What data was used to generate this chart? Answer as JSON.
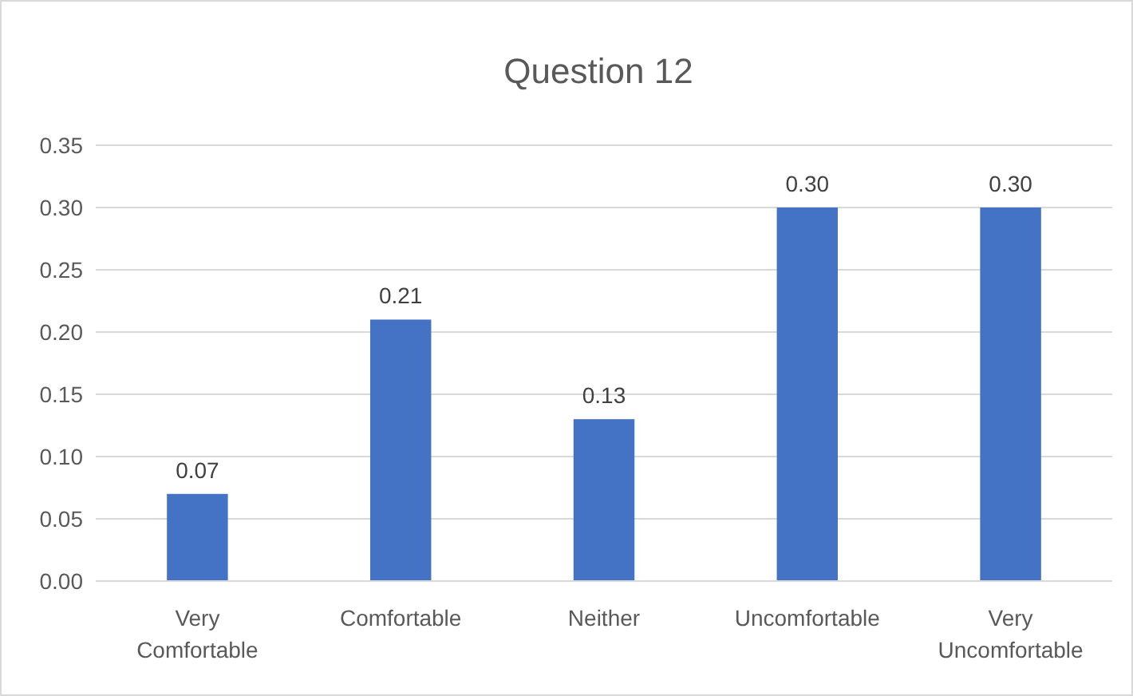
{
  "chart_data": {
    "type": "bar",
    "title": "Question 12",
    "categories": [
      "Very Comfortable",
      "Comfortable",
      "Neither",
      "Uncomfortable",
      "Very Uncomfortable"
    ],
    "values": [
      0.07,
      0.21,
      0.13,
      0.3,
      0.3
    ],
    "value_labels": [
      "0.07",
      "0.21",
      "0.13",
      "0.30",
      "0.30"
    ],
    "color": "#4472c4",
    "ylim": [
      0,
      0.35
    ],
    "yticks": [
      {
        "value": 0,
        "label": "0.00"
      },
      {
        "value": 0.05,
        "label": "0.05"
      },
      {
        "value": 0.1,
        "label": "0.10"
      },
      {
        "value": 0.15,
        "label": "0.15"
      },
      {
        "value": 0.2,
        "label": "0.20"
      },
      {
        "value": 0.25,
        "label": "0.25"
      },
      {
        "value": 0.3,
        "label": "0.30"
      },
      {
        "value": 0.35,
        "label": "0.35"
      }
    ],
    "grid": true
  }
}
